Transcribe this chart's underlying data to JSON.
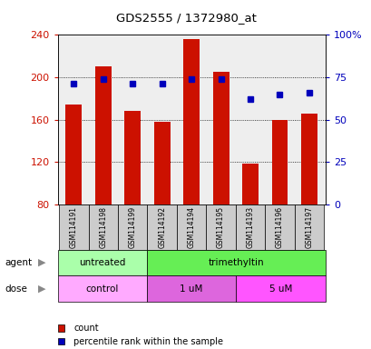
{
  "title": "GDS2555 / 1372980_at",
  "samples": [
    "GSM114191",
    "GSM114198",
    "GSM114199",
    "GSM114192",
    "GSM114194",
    "GSM114195",
    "GSM114193",
    "GSM114196",
    "GSM114197"
  ],
  "counts": [
    174,
    210,
    168,
    158,
    236,
    205,
    118,
    160,
    166
  ],
  "percentiles": [
    71,
    74,
    71,
    71,
    74,
    74,
    62,
    65,
    66
  ],
  "ylim_left": [
    80,
    240
  ],
  "ylim_right": [
    0,
    100
  ],
  "yticks_left": [
    80,
    120,
    160,
    200,
    240
  ],
  "yticks_right": [
    0,
    25,
    50,
    75,
    100
  ],
  "yticklabels_right": [
    "0",
    "25",
    "50",
    "75",
    "100%"
  ],
  "bar_color": "#cc1100",
  "dot_color": "#0000bb",
  "agent_groups": [
    {
      "label": "untreated",
      "start": 0,
      "end": 3,
      "color": "#aaffaa"
    },
    {
      "label": "trimethyltin",
      "start": 3,
      "end": 9,
      "color": "#66ee55"
    }
  ],
  "dose_groups": [
    {
      "label": "control",
      "start": 0,
      "end": 3,
      "color": "#ffaaff"
    },
    {
      "label": "1 uM",
      "start": 3,
      "end": 6,
      "color": "#dd66dd"
    },
    {
      "label": "5 uM",
      "start": 6,
      "end": 9,
      "color": "#ff55ff"
    }
  ],
  "left_tick_color": "#cc1100",
  "right_tick_color": "#0000bb",
  "legend_items": [
    {
      "label": "count",
      "color": "#cc1100"
    },
    {
      "label": "percentile rank within the sample",
      "color": "#0000bb"
    }
  ]
}
